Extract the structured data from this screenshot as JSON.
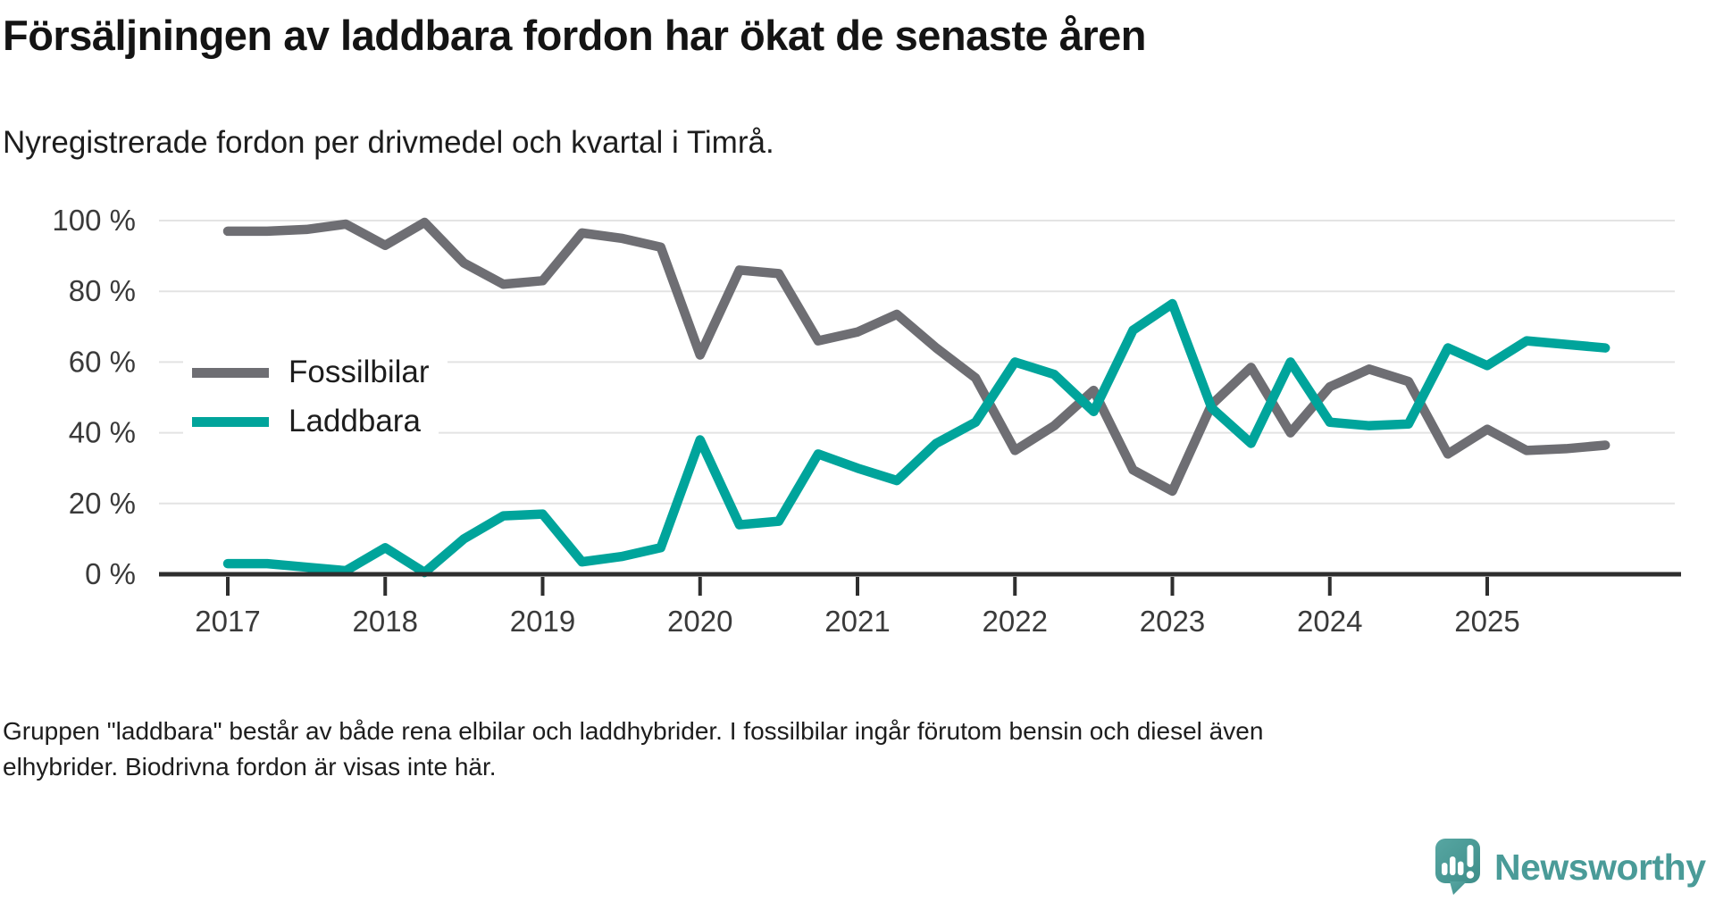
{
  "header": {
    "title": "Försäljningen av laddbara fordon har ökat de senaste åren",
    "subtitle": "Nyregistrerade fordon per drivmedel och kvartal i Timrå."
  },
  "legend": {
    "items": [
      {
        "label": "Fossilbilar",
        "color": "#6e6e73"
      },
      {
        "label": "Laddbara",
        "color": "#00a49b"
      }
    ]
  },
  "chart_data": {
    "type": "line",
    "x": [
      "2017 Q1",
      "2017 Q2",
      "2017 Q3",
      "2017 Q4",
      "2018 Q1",
      "2018 Q2",
      "2018 Q3",
      "2018 Q4",
      "2019 Q1",
      "2019 Q2",
      "2019 Q3",
      "2019 Q4",
      "2020 Q1",
      "2020 Q2",
      "2020 Q3",
      "2020 Q4",
      "2021 Q1",
      "2021 Q2",
      "2021 Q3",
      "2021 Q4",
      "2022 Q1",
      "2022 Q2",
      "2022 Q3",
      "2022 Q4",
      "2023 Q1",
      "2023 Q2",
      "2023 Q3",
      "2023 Q4",
      "2024 Q1",
      "2024 Q2",
      "2024 Q3",
      "2024 Q4",
      "2025 Q1",
      "2025 Q2",
      "2025 Q3",
      "2025 Q4"
    ],
    "series": [
      {
        "name": "Fossilbilar",
        "color": "#6e6e73",
        "values": [
          97,
          97,
          97.5,
          99,
          93,
          99.5,
          88,
          82,
          83,
          96.5,
          95,
          92.5,
          62,
          86,
          85,
          66,
          68.5,
          73.5,
          64,
          55.5,
          35,
          42,
          52,
          29.5,
          23.5,
          48,
          58.5,
          40,
          53,
          58,
          54.5,
          34,
          41,
          35,
          35.5,
          36.5
        ]
      },
      {
        "name": "Laddbara",
        "color": "#00a49b",
        "values": [
          3,
          3,
          2,
          1,
          7.5,
          0.5,
          10,
          16.5,
          17,
          3.5,
          5,
          7.5,
          38,
          14,
          15,
          34,
          30,
          26.5,
          37,
          43,
          60,
          56.5,
          46,
          69,
          76.5,
          47,
          37,
          60,
          43,
          42,
          42.5,
          64,
          59,
          66,
          65,
          64
        ]
      }
    ],
    "title": "Försäljningen av laddbara fordon har ökat de senaste åren",
    "xlabel": "",
    "ylabel": "",
    "ylim": [
      0,
      100
    ],
    "grid": "horizontal",
    "legend_position": "inside-left",
    "yticks": {
      "values": [
        0,
        20,
        40,
        60,
        80,
        100
      ],
      "labels": [
        "0 %",
        "20 %",
        "40 %",
        "60 %",
        "80 %",
        "100 %"
      ]
    },
    "xticks": {
      "quarter_indices": [
        0,
        4,
        8,
        12,
        16,
        20,
        24,
        28,
        32
      ],
      "labels": [
        "2017",
        "2018",
        "2019",
        "2020",
        "2021",
        "2022",
        "2023",
        "2024",
        "2025"
      ]
    }
  },
  "footer": {
    "lines": [
      "Gruppen \"laddbara\" består av både rena elbilar och laddhybrider. I fossilbilar ingår förutom bensin och diesel även",
      "elhybrider. Biodrivna fordon är visas inte här."
    ]
  },
  "logo": {
    "text": "Newsworthy",
    "color": "#4a9b98",
    "icon": "newsworthy-speech-bubble-chart-icon"
  }
}
